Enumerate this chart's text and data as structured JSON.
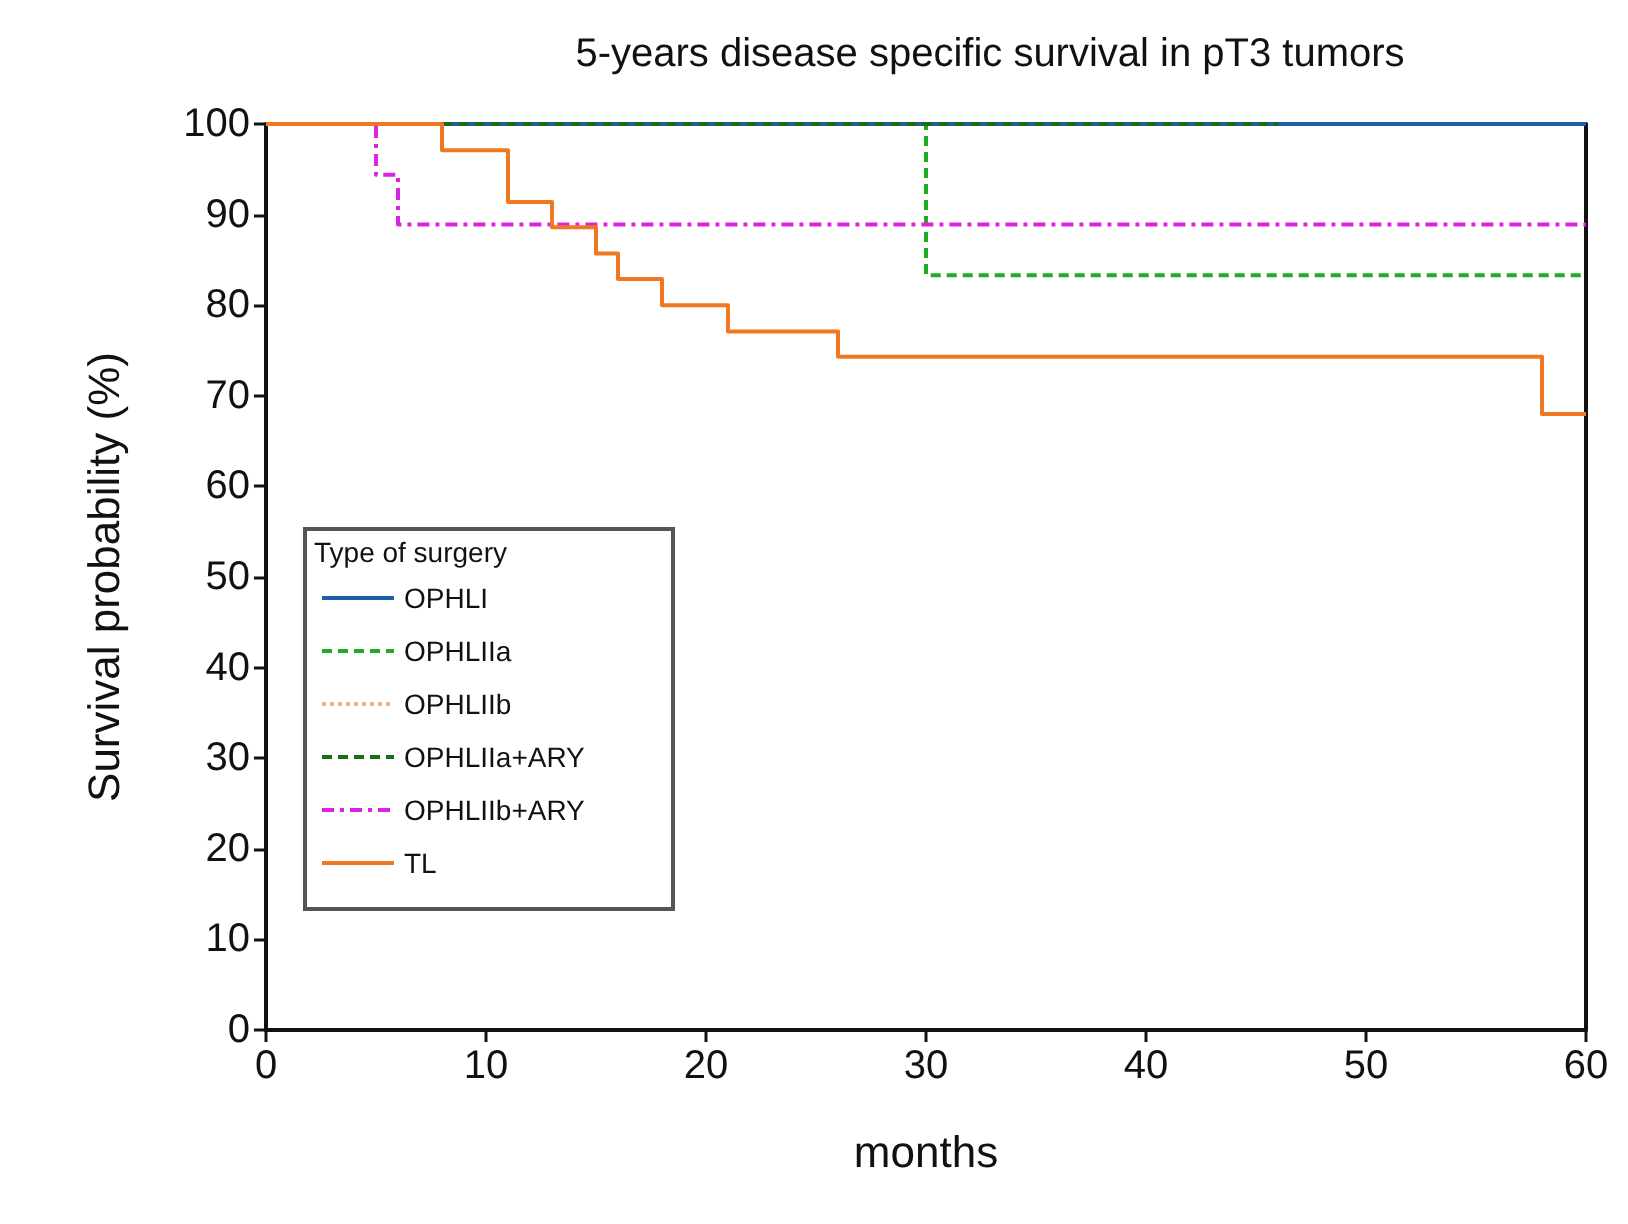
{
  "chart_data": {
    "type": "step",
    "title": "5-years disease specific survival in pT3 tumors",
    "xlabel": "months",
    "ylabel": "Survival probability (%)",
    "legend_title": "Type of surgery",
    "series": [
      {
        "name": "OPHLI",
        "color": "#1f5fa6",
        "line_style": "solid",
        "x": [
          0,
          60
        ],
        "values": [
          100,
          100
        ]
      },
      {
        "name": "OPHLIIa",
        "color": "#22aa22",
        "line_style": "dashed",
        "x": [
          0,
          30,
          60
        ],
        "values": [
          100,
          83.3,
          83.3
        ]
      },
      {
        "name": "OPHLIIb",
        "color": "#f4b183",
        "line_style": "dotted"
      },
      {
        "name": "OPHLIIa+ARY",
        "color": "#1a6b1a",
        "line_style": "dashed",
        "x": [
          8,
          46
        ],
        "values": [
          100,
          100
        ]
      },
      {
        "name": "OPHLIIb+ARY",
        "color": "#e020e0",
        "line_style": "dashdot",
        "x": [
          0,
          5,
          6,
          60
        ],
        "values": [
          100,
          94.4,
          88.9,
          88.9
        ]
      },
      {
        "name": "TL",
        "color": "#f07820",
        "line_style": "solid",
        "x": [
          0,
          8,
          11,
          13,
          15,
          16,
          18,
          21,
          26,
          58,
          60
        ],
        "values": [
          100,
          97.1,
          91.4,
          88.6,
          85.7,
          82.9,
          80,
          77.1,
          74.3,
          68,
          68
        ]
      }
    ],
    "xlim": [
      0,
      60
    ],
    "xticks": [
      0,
      10,
      20,
      30,
      40,
      50,
      60
    ],
    "ylim": [
      0,
      100
    ],
    "yticks": [
      0,
      10,
      20,
      30,
      40,
      50,
      60,
      70,
      80,
      90,
      100
    ],
    "grid": false,
    "legend": "bottom left"
  }
}
